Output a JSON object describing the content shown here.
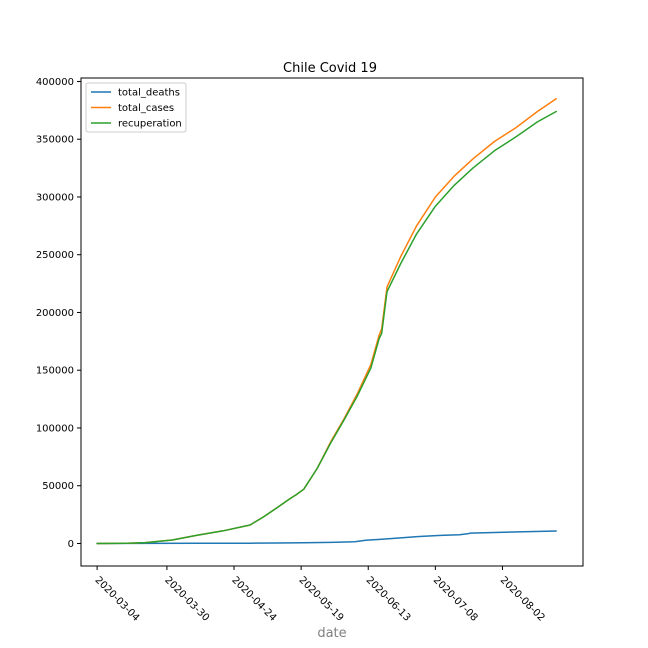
{
  "chart_data": {
    "type": "line",
    "title": "Chile Covid 19",
    "xlabel": "date",
    "ylabel": "",
    "xlim": [
      "2020-02-27",
      "2020-09-01"
    ],
    "ylim": [
      -19500,
      403000
    ],
    "x_ticks": [
      "2020-03-04",
      "2020-03-30",
      "2020-04-24",
      "2020-05-19",
      "2020-06-13",
      "2020-07-08",
      "2020-08-02"
    ],
    "y_ticks": [
      0,
      50000,
      100000,
      150000,
      200000,
      250000,
      300000,
      350000,
      400000
    ],
    "y_tick_labels": [
      "0",
      "50000",
      "100000",
      "150000",
      "200000",
      "250000",
      "300000",
      "350000",
      "400000"
    ],
    "grid": false,
    "legend_position": "upper left",
    "series": [
      {
        "name": "total_deaths",
        "color": "#1f77b4",
        "x": [
          "2020-03-04",
          "2020-03-20",
          "2020-04-10",
          "2020-04-30",
          "2020-05-10",
          "2020-05-20",
          "2020-05-30",
          "2020-06-08",
          "2020-06-12",
          "2020-06-18",
          "2020-06-25",
          "2020-07-02",
          "2020-07-10",
          "2020-07-17",
          "2020-07-20",
          "2020-07-21",
          "2020-07-30",
          "2020-08-10",
          "2020-08-22"
        ],
        "values": [
          0,
          40,
          170,
          250,
          400,
          550,
          900,
          1500,
          2800,
          3600,
          4800,
          6000,
          7000,
          7600,
          8400,
          9000,
          9500,
          10200,
          10800
        ]
      },
      {
        "name": "total_cases",
        "color": "#ff7f0e",
        "x": [
          "2020-03-04",
          "2020-03-15",
          "2020-03-22",
          "2020-04-01",
          "2020-04-10",
          "2020-04-20",
          "2020-04-30",
          "2020-05-05",
          "2020-05-10",
          "2020-05-15",
          "2020-05-17",
          "2020-05-20",
          "2020-05-25",
          "2020-05-30",
          "2020-06-04",
          "2020-06-09",
          "2020-06-14",
          "2020-06-17",
          "2020-06-18",
          "2020-06-20",
          "2020-06-25",
          "2020-07-01",
          "2020-07-08",
          "2020-07-15",
          "2020-07-22",
          "2020-07-30",
          "2020-08-07",
          "2020-08-15",
          "2020-08-22"
        ],
        "values": [
          0,
          150,
          800,
          3000,
          7000,
          11000,
          16000,
          23000,
          31000,
          39000,
          42000,
          47000,
          65000,
          88000,
          108000,
          130000,
          155000,
          180000,
          186000,
          222000,
          248000,
          275000,
          300000,
          318000,
          333000,
          348000,
          360000,
          374000,
          385000
        ]
      },
      {
        "name": "recuperation",
        "color": "#2ca02c",
        "x": [
          "2020-03-04",
          "2020-03-15",
          "2020-03-22",
          "2020-04-01",
          "2020-04-10",
          "2020-04-20",
          "2020-04-30",
          "2020-05-05",
          "2020-05-10",
          "2020-05-15",
          "2020-05-17",
          "2020-05-20",
          "2020-05-25",
          "2020-05-30",
          "2020-06-04",
          "2020-06-09",
          "2020-06-14",
          "2020-06-17",
          "2020-06-18",
          "2020-06-20",
          "2020-06-25",
          "2020-07-01",
          "2020-07-08",
          "2020-07-15",
          "2020-07-22",
          "2020-07-30",
          "2020-08-07",
          "2020-08-15",
          "2020-08-22"
        ],
        "values": [
          0,
          150,
          800,
          3000,
          7000,
          11000,
          16000,
          23000,
          31000,
          39000,
          42000,
          47000,
          65000,
          87000,
          107000,
          128000,
          152000,
          177000,
          182000,
          218000,
          242000,
          268000,
          292000,
          310000,
          325000,
          340000,
          352000,
          365000,
          374000
        ]
      }
    ]
  }
}
